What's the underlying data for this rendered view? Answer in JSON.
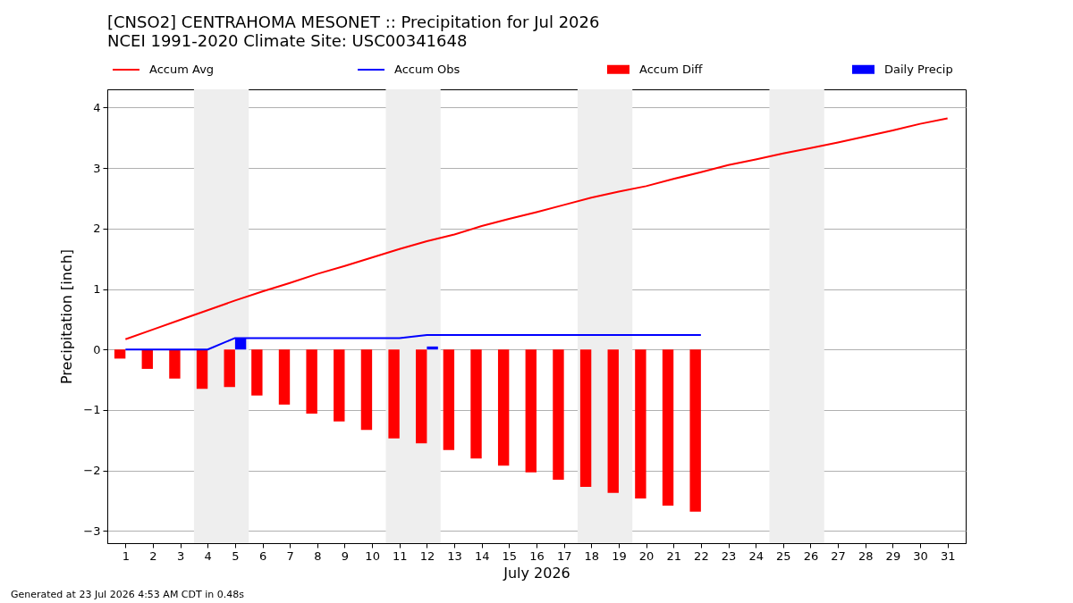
{
  "chart_data": {
    "type": "line",
    "title": "[CNSO2] CENTRAHOMA MESONET :: Precipitation for Jul 2026",
    "subtitle": "NCEI 1991-2020 Climate Site: USC00341648",
    "xlabel": "July 2026",
    "ylabel": "Precipitation [inch]",
    "annotations": [
      "Generated at 23 Jul 2026 4:53 AM CDT in 0.48s"
    ],
    "x": [
      1,
      2,
      3,
      4,
      5,
      6,
      7,
      8,
      9,
      10,
      11,
      12,
      13,
      14,
      15,
      16,
      17,
      18,
      19,
      20,
      21,
      22,
      23,
      24,
      25,
      26,
      27,
      28,
      29,
      30,
      31
    ],
    "series": [
      {
        "name": "Accum Avg",
        "color": "#ff0000",
        "values": [
          0.17,
          0.33,
          0.49,
          0.65,
          0.81,
          0.96,
          1.1,
          1.25,
          1.38,
          1.52,
          1.66,
          1.79,
          1.9,
          2.04,
          2.16,
          2.27,
          2.39,
          2.51,
          2.61,
          2.7,
          2.82,
          2.93,
          3.05,
          3.14,
          3.24,
          3.33,
          3.42,
          3.52,
          3.62,
          3.73,
          3.82
        ]
      },
      {
        "name": "Accum Obs",
        "color": "#0000ff",
        "x": [
          1,
          2,
          3,
          4,
          5,
          6,
          7,
          8,
          9,
          10,
          11,
          12,
          13,
          14,
          15,
          16,
          17,
          18,
          19,
          20,
          21,
          22
        ],
        "values": [
          0,
          0,
          0,
          0,
          0.19,
          0.19,
          0.19,
          0.19,
          0.19,
          0.19,
          0.19,
          0.24,
          0.24,
          0.24,
          0.24,
          0.24,
          0.24,
          0.24,
          0.24,
          0.24,
          0.24,
          0.24
        ]
      },
      {
        "name": "Accum Diff",
        "type": "bar",
        "color": "#ff0000",
        "x": [
          1,
          2,
          3,
          4,
          5,
          6,
          7,
          8,
          9,
          10,
          11,
          12,
          13,
          14,
          15,
          16,
          17,
          18,
          19,
          20,
          21,
          22
        ],
        "values": [
          -0.15,
          -0.32,
          -0.48,
          -0.65,
          -0.62,
          -0.76,
          -0.91,
          -1.06,
          -1.19,
          -1.33,
          -1.47,
          -1.55,
          -1.66,
          -1.8,
          -1.92,
          -2.03,
          -2.15,
          -2.27,
          -2.37,
          -2.46,
          -2.58,
          -2.68
        ]
      },
      {
        "name": "Daily Precip",
        "type": "bar",
        "color": "#0000ff",
        "x": [
          5,
          12
        ],
        "values": [
          0.19,
          0.05
        ]
      }
    ],
    "xlim": [
      0.5,
      31.5
    ],
    "ylim": [
      -3.2,
      4.3
    ],
    "xticks": [
      1,
      2,
      3,
      4,
      5,
      6,
      7,
      8,
      9,
      10,
      11,
      12,
      13,
      14,
      15,
      16,
      17,
      18,
      19,
      20,
      21,
      22,
      23,
      24,
      25,
      26,
      27,
      28,
      29,
      30,
      31
    ],
    "yticks": [
      {
        "value": -3,
        "label": "−3"
      },
      {
        "value": -2,
        "label": "−2"
      },
      {
        "value": -1,
        "label": "−1"
      },
      0,
      1,
      2,
      3,
      4
    ],
    "bands": [
      {
        "axis": "x",
        "from": 3.5,
        "to": 5.5,
        "color": "#eeeeee"
      },
      {
        "axis": "x",
        "from": 10.5,
        "to": 12.5,
        "color": "#eeeeee"
      },
      {
        "axis": "x",
        "from": 17.5,
        "to": 19.5,
        "color": "#eeeeee"
      },
      {
        "axis": "x",
        "from": 24.5,
        "to": 26.5,
        "color": "#eeeeee"
      }
    ],
    "grid": "y",
    "legend": "top"
  }
}
